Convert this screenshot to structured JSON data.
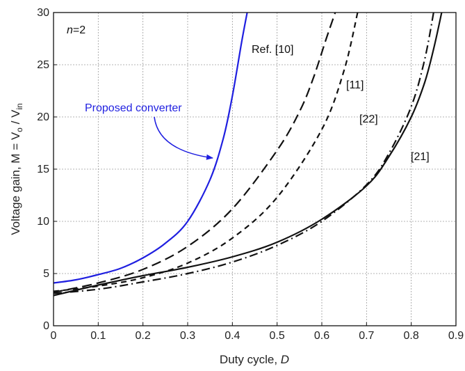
{
  "chart_data": {
    "type": "line",
    "title": "",
    "xlabel": "Duty cycle, ",
    "xlabel_italic": "D",
    "ylabel": "Voltage gain, M = V",
    "ylabel_sub1": "o",
    "ylabel_mid": " / V",
    "ylabel_sub2": "in",
    "xlim": [
      0,
      0.9
    ],
    "ylim": [
      0,
      30
    ],
    "xticks": [
      0,
      0.1,
      0.2,
      0.3,
      0.4,
      0.5,
      0.6,
      0.7,
      0.8,
      0.9
    ],
    "xtick_labels": [
      "0",
      "0.1",
      "0.2",
      "0.3",
      "0.4",
      "0.5",
      "0.6",
      "0.7",
      "0.8",
      "0.9"
    ],
    "yticks": [
      0,
      5,
      10,
      15,
      20,
      25,
      30
    ],
    "ytick_labels": [
      "0",
      "5",
      "10",
      "15",
      "20",
      "25",
      "30"
    ],
    "grid": true,
    "annotation_n_italic": "n",
    "annotation_n_value": "=2",
    "series": [
      {
        "name": "Proposed converter",
        "color": "#1f1fe0",
        "style": "solid",
        "x": [
          0,
          0.05,
          0.1,
          0.15,
          0.2,
          0.25,
          0.3,
          0.35,
          0.38,
          0.4,
          0.42,
          0.433
        ],
        "y": [
          4.1,
          4.4,
          4.9,
          5.5,
          6.5,
          7.9,
          10.0,
          14.0,
          18.0,
          22.0,
          27.0,
          30.0
        ]
      },
      {
        "name": "Ref. [10]",
        "color": "#111111",
        "style": "longdash",
        "x": [
          0,
          0.1,
          0.2,
          0.3,
          0.4,
          0.5,
          0.55,
          0.58,
          0.61,
          0.63
        ],
        "y": [
          3.2,
          4.1,
          5.4,
          7.6,
          11.2,
          16.8,
          20.5,
          23.6,
          27.5,
          30.0
        ]
      },
      {
        "name": "[11]",
        "color": "#111111",
        "style": "dash",
        "x": [
          0,
          0.1,
          0.2,
          0.3,
          0.4,
          0.5,
          0.6,
          0.65,
          0.68
        ],
        "y": [
          3.3,
          3.8,
          4.6,
          6.0,
          8.4,
          12.3,
          18.8,
          24.5,
          30.0
        ]
      },
      {
        "name": "[22]",
        "color": "#111111",
        "style": "dashdot",
        "x": [
          0,
          0.1,
          0.2,
          0.3,
          0.4,
          0.5,
          0.6,
          0.7,
          0.75,
          0.8,
          0.83,
          0.85
        ],
        "y": [
          3.1,
          3.5,
          4.2,
          5.0,
          6.1,
          7.7,
          10.0,
          13.5,
          16.5,
          21.0,
          25.5,
          30.0
        ]
      },
      {
        "name": "[21]",
        "color": "#111111",
        "style": "solid",
        "x": [
          0,
          0.1,
          0.2,
          0.3,
          0.4,
          0.5,
          0.6,
          0.7,
          0.75,
          0.8,
          0.83,
          0.85,
          0.868
        ],
        "y": [
          2.9,
          3.9,
          4.8,
          5.6,
          6.6,
          8.0,
          10.2,
          13.4,
          16.2,
          20.0,
          23.3,
          26.5,
          30.0
        ]
      }
    ]
  }
}
